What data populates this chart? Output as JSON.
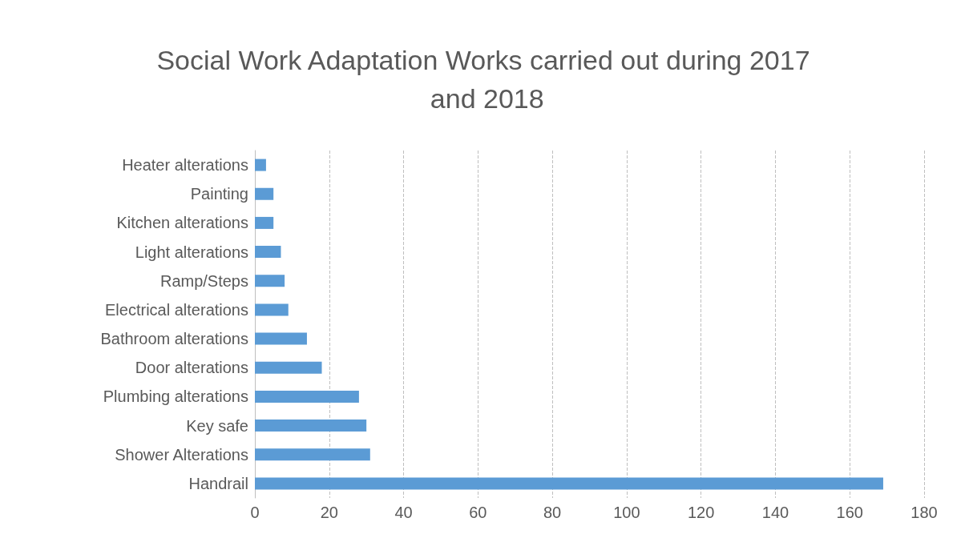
{
  "chart_data": {
    "type": "bar",
    "orientation": "horizontal",
    "title": "Social Work Adaptation Works carried out during 2017 and 2018",
    "categories": [
      "Heater alterations",
      "Painting",
      "Kitchen alterations",
      "Light alterations",
      "Ramp/Steps",
      "Electrical alterations",
      "Bathroom alterations",
      "Door alterations",
      "Plumbing alterations",
      "Key safe",
      "Shower Alterations",
      "Handrail"
    ],
    "values": [
      3,
      5,
      5,
      7,
      8,
      9,
      14,
      18,
      28,
      30,
      31,
      169
    ],
    "color": "#5b9bd5",
    "xlim": [
      0,
      180
    ],
    "xticks": [
      0,
      20,
      40,
      60,
      80,
      100,
      120,
      140,
      160,
      180
    ],
    "grid": "x"
  }
}
